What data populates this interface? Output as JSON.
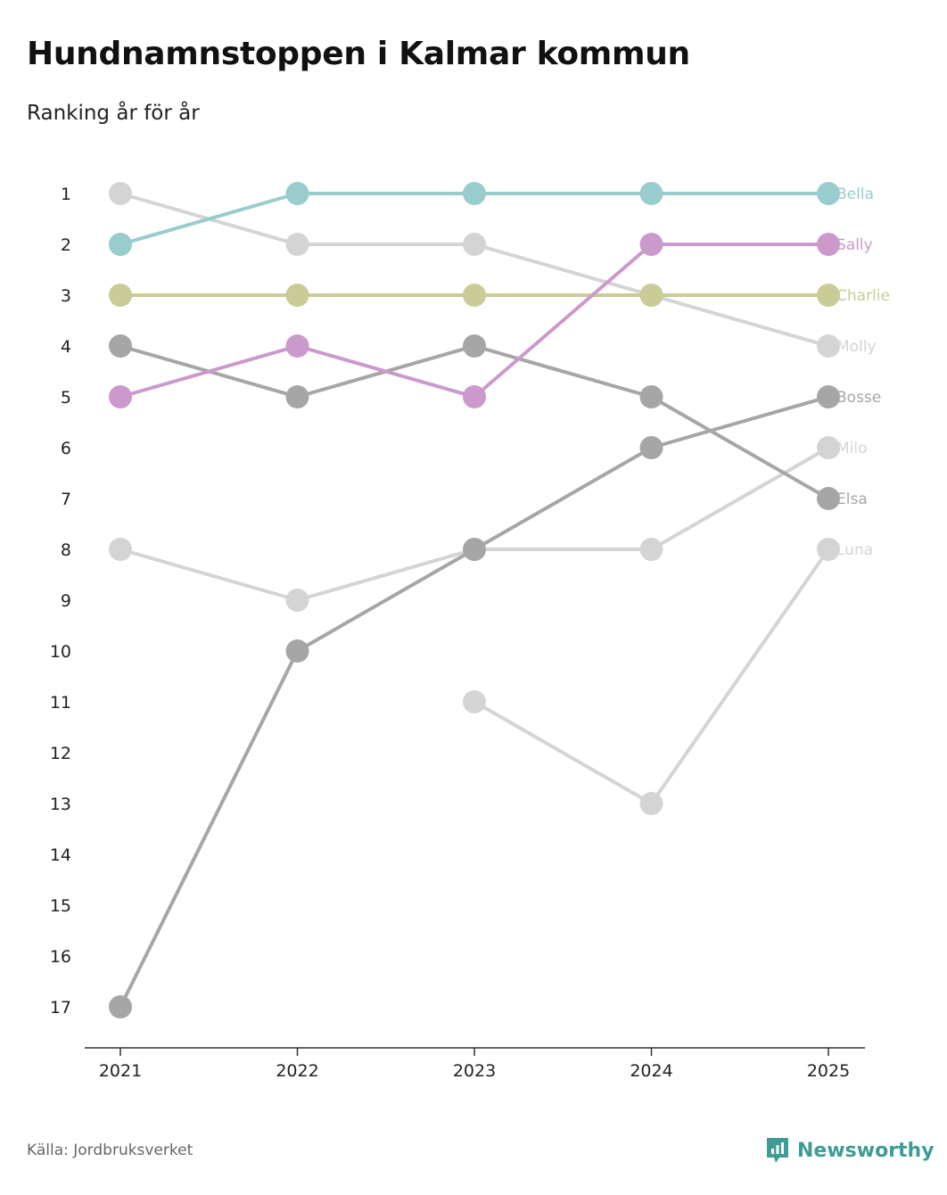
{
  "title": "Hundnamnstoppen i Kalmar kommun",
  "subtitle": "Ranking år för år",
  "source": "Källa: Jordbruksverket",
  "brand": "Newsworthy",
  "brand_color": "#3f9c95",
  "chart_data": {
    "type": "line",
    "title": "Hundnamnstoppen i Kalmar kommun",
    "subtitle": "Ranking år för år",
    "xlabel": "",
    "ylabel": "",
    "categories": [
      "2021",
      "2022",
      "2023",
      "2024",
      "2025"
    ],
    "y_ticks": [
      1,
      2,
      3,
      4,
      5,
      6,
      7,
      8,
      9,
      10,
      11,
      12,
      13,
      14,
      15,
      16,
      17
    ],
    "ylim": [
      1,
      17
    ],
    "y_inverted": true,
    "grid": false,
    "series": [
      {
        "name": "Molly",
        "color": "#d4d4d4",
        "values": [
          1,
          2,
          2,
          3,
          4
        ]
      },
      {
        "name": "Luna",
        "color": "#d4d4d4",
        "values": [
          null,
          null,
          11,
          13,
          8
        ]
      },
      {
        "name": "Milo",
        "color": "#d4d4d4",
        "values": [
          8,
          9,
          8,
          8,
          6
        ]
      },
      {
        "name": "Elsa",
        "color": "#a6a6a6",
        "values": [
          4,
          5,
          4,
          5,
          7
        ]
      },
      {
        "name": "Bosse",
        "color": "#a6a6a6",
        "values": [
          17,
          10,
          8,
          6,
          5
        ]
      },
      {
        "name": "Charlie",
        "color": "#c9cc96",
        "values": [
          3,
          3,
          3,
          3,
          3
        ]
      },
      {
        "name": "Sally",
        "color": "#cc99cc",
        "values": [
          5,
          4,
          5,
          2,
          2
        ]
      },
      {
        "name": "Bella",
        "color": "#99cccc",
        "values": [
          2,
          1,
          1,
          1,
          1
        ]
      }
    ]
  }
}
